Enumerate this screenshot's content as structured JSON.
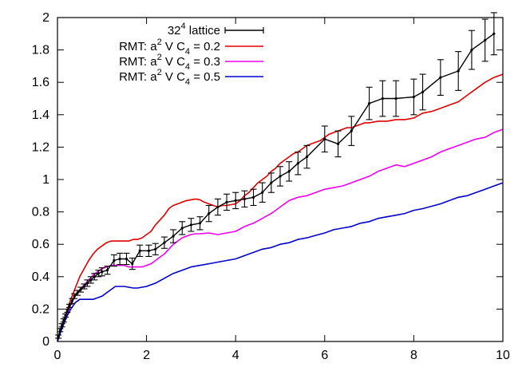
{
  "chart_data": {
    "type": "line",
    "title": "",
    "xlabel": "",
    "ylabel": "",
    "xlim": [
      0,
      10
    ],
    "ylim": [
      0,
      2
    ],
    "x_ticks": [
      "0",
      "2",
      "4",
      "6",
      "8",
      "10"
    ],
    "y_ticks": [
      "0",
      "0.2",
      "0.4",
      "0.6",
      "0.8",
      "1",
      "1.2",
      "1.4",
      "1.6",
      "1.8",
      "2"
    ],
    "grid": false,
    "legend_position": "top-left",
    "series": [
      {
        "name": "32⁴ lattice",
        "legend_base": "32",
        "legend_sup": "4",
        "legend_rest": " lattice",
        "color": "#000000",
        "style": "errorbars-with-line",
        "x": [
          0.02,
          0.06,
          0.1,
          0.14,
          0.18,
          0.22,
          0.27,
          0.33,
          0.38,
          0.45,
          0.52,
          0.6,
          0.67,
          0.75,
          0.83,
          0.92,
          1.0,
          1.12,
          1.27,
          1.4,
          1.55,
          1.68,
          1.85,
          2.05,
          2.2,
          2.4,
          2.6,
          2.8,
          3.0,
          3.2,
          3.4,
          3.6,
          3.8,
          4.0,
          4.2,
          4.4,
          4.6,
          4.8,
          5.0,
          5.2,
          5.4,
          5.6,
          6.0,
          6.3,
          6.6,
          7.0,
          7.3,
          7.6,
          8.0,
          8.2,
          8.6,
          9.0,
          9.3,
          9.6,
          9.8
        ],
        "y": [
          0.03,
          0.07,
          0.1,
          0.13,
          0.16,
          0.19,
          0.22,
          0.25,
          0.28,
          0.3,
          0.32,
          0.34,
          0.36,
          0.38,
          0.4,
          0.42,
          0.43,
          0.44,
          0.5,
          0.51,
          0.51,
          0.48,
          0.56,
          0.56,
          0.57,
          0.61,
          0.65,
          0.7,
          0.72,
          0.73,
          0.79,
          0.83,
          0.86,
          0.87,
          0.88,
          0.89,
          0.92,
          0.98,
          1.02,
          1.05,
          1.1,
          1.14,
          1.25,
          1.22,
          1.3,
          1.47,
          1.5,
          1.5,
          1.51,
          1.54,
          1.63,
          1.67,
          1.8,
          1.86,
          1.9
        ],
        "err": [
          0.01,
          0.01,
          0.01,
          0.01,
          0.01,
          0.01,
          0.01,
          0.015,
          0.015,
          0.015,
          0.015,
          0.015,
          0.02,
          0.02,
          0.02,
          0.02,
          0.025,
          0.025,
          0.035,
          0.035,
          0.035,
          0.035,
          0.035,
          0.035,
          0.035,
          0.035,
          0.04,
          0.04,
          0.04,
          0.04,
          0.05,
          0.05,
          0.05,
          0.05,
          0.05,
          0.05,
          0.06,
          0.06,
          0.06,
          0.06,
          0.07,
          0.07,
          0.08,
          0.08,
          0.09,
          0.1,
          0.11,
          0.11,
          0.11,
          0.11,
          0.11,
          0.12,
          0.12,
          0.13,
          0.13
        ]
      },
      {
        "name": "RMT: a² V C₄ = 0.2",
        "legend_prefix": "RMT: a",
        "legend_sup": "2",
        "legend_mid": " V C",
        "legend_sub": "4",
        "legend_rest": " = 0.2",
        "color": "#e00000",
        "style": "line",
        "x": [
          0,
          0.1,
          0.2,
          0.3,
          0.4,
          0.5,
          0.6,
          0.7,
          0.8,
          0.9,
          1.0,
          1.1,
          1.2,
          1.3,
          1.4,
          1.5,
          1.6,
          1.7,
          1.8,
          1.9,
          2.0,
          2.1,
          2.2,
          2.3,
          2.4,
          2.5,
          2.6,
          2.7,
          2.8,
          2.9,
          3.0,
          3.1,
          3.2,
          3.3,
          3.4,
          3.5,
          3.6,
          3.7,
          3.8,
          3.9,
          4.0,
          4.1,
          4.2,
          4.3,
          4.4,
          4.5,
          4.6,
          4.7,
          4.8,
          4.9,
          5.0,
          5.1,
          5.2,
          5.3,
          5.4,
          5.5,
          5.6,
          5.7,
          5.8,
          5.9,
          6.0,
          6.1,
          6.2,
          6.3,
          6.4,
          6.5,
          6.6,
          6.7,
          6.8,
          6.9,
          7.0,
          7.2,
          7.4,
          7.6,
          7.8,
          8.0,
          8.2,
          8.4,
          8.6,
          8.8,
          9.0,
          9.2,
          9.4,
          9.6,
          9.8,
          10.0
        ],
        "y": [
          0,
          0.1,
          0.18,
          0.26,
          0.33,
          0.4,
          0.45,
          0.5,
          0.54,
          0.57,
          0.59,
          0.61,
          0.62,
          0.62,
          0.62,
          0.62,
          0.62,
          0.63,
          0.63,
          0.64,
          0.66,
          0.68,
          0.72,
          0.75,
          0.78,
          0.82,
          0.84,
          0.85,
          0.86,
          0.87,
          0.875,
          0.88,
          0.875,
          0.86,
          0.85,
          0.84,
          0.83,
          0.84,
          0.84,
          0.845,
          0.85,
          0.87,
          0.9,
          0.92,
          0.95,
          0.98,
          1.0,
          1.02,
          1.05,
          1.07,
          1.1,
          1.12,
          1.14,
          1.16,
          1.17,
          1.19,
          1.21,
          1.22,
          1.23,
          1.24,
          1.26,
          1.28,
          1.29,
          1.3,
          1.31,
          1.32,
          1.32,
          1.33,
          1.34,
          1.35,
          1.35,
          1.36,
          1.36,
          1.37,
          1.37,
          1.38,
          1.41,
          1.42,
          1.44,
          1.46,
          1.48,
          1.52,
          1.56,
          1.6,
          1.63,
          1.65
        ]
      },
      {
        "name": "RMT: a² V C₄ = 0.3",
        "legend_prefix": "RMT: a",
        "legend_sup": "2",
        "legend_mid": " V C",
        "legend_sub": "4",
        "legend_rest": " = 0.3",
        "color": "#ee00ee",
        "style": "line",
        "x": [
          0,
          0.1,
          0.2,
          0.3,
          0.4,
          0.5,
          0.6,
          0.7,
          0.8,
          0.9,
          1.0,
          1.1,
          1.2,
          1.3,
          1.4,
          1.5,
          1.6,
          1.7,
          1.8,
          1.9,
          2.0,
          2.1,
          2.2,
          2.3,
          2.4,
          2.5,
          2.6,
          2.7,
          2.8,
          2.9,
          3.0,
          3.1,
          3.2,
          3.4,
          3.6,
          3.8,
          4.0,
          4.2,
          4.4,
          4.6,
          4.8,
          5.0,
          5.2,
          5.4,
          5.6,
          5.8,
          6.0,
          6.2,
          6.4,
          6.6,
          6.8,
          7.0,
          7.2,
          7.4,
          7.6,
          7.8,
          8.0,
          8.2,
          8.4,
          8.6,
          8.8,
          9.0,
          9.2,
          9.4,
          9.6,
          9.8,
          10.0
        ],
        "y": [
          0,
          0.09,
          0.16,
          0.23,
          0.28,
          0.32,
          0.35,
          0.38,
          0.41,
          0.43,
          0.45,
          0.46,
          0.47,
          0.47,
          0.47,
          0.47,
          0.46,
          0.46,
          0.46,
          0.46,
          0.47,
          0.48,
          0.5,
          0.52,
          0.54,
          0.57,
          0.6,
          0.62,
          0.64,
          0.65,
          0.66,
          0.665,
          0.665,
          0.67,
          0.66,
          0.67,
          0.68,
          0.71,
          0.73,
          0.76,
          0.79,
          0.83,
          0.87,
          0.89,
          0.9,
          0.92,
          0.94,
          0.95,
          0.96,
          0.98,
          1.0,
          1.02,
          1.05,
          1.07,
          1.09,
          1.08,
          1.1,
          1.12,
          1.14,
          1.17,
          1.19,
          1.21,
          1.23,
          1.25,
          1.26,
          1.29,
          1.31
        ]
      },
      {
        "name": "RMT: a² V C₄ = 0.5",
        "legend_prefix": "RMT: a",
        "legend_sup": "2",
        "legend_mid": " V C",
        "legend_sub": "4",
        "legend_rest": " = 0.5",
        "color": "#0000cc",
        "style": "line",
        "x": [
          0,
          0.1,
          0.2,
          0.3,
          0.4,
          0.5,
          0.6,
          0.7,
          0.8,
          0.9,
          1.0,
          1.1,
          1.2,
          1.3,
          1.4,
          1.5,
          1.6,
          1.7,
          1.8,
          1.9,
          2.0,
          2.2,
          2.4,
          2.6,
          2.8,
          3.0,
          3.2,
          3.4,
          3.6,
          3.8,
          4.0,
          4.2,
          4.4,
          4.6,
          4.8,
          5.0,
          5.2,
          5.4,
          5.6,
          5.8,
          6.0,
          6.2,
          6.4,
          6.6,
          6.8,
          7.0,
          7.2,
          7.4,
          7.6,
          7.8,
          8.0,
          8.2,
          8.4,
          8.6,
          8.8,
          9.0,
          9.2,
          9.4,
          9.6,
          9.8,
          10.0
        ],
        "y": [
          0,
          0.08,
          0.15,
          0.2,
          0.24,
          0.26,
          0.26,
          0.26,
          0.26,
          0.27,
          0.28,
          0.3,
          0.32,
          0.34,
          0.34,
          0.34,
          0.335,
          0.33,
          0.33,
          0.335,
          0.34,
          0.36,
          0.39,
          0.42,
          0.44,
          0.46,
          0.47,
          0.48,
          0.49,
          0.5,
          0.51,
          0.53,
          0.55,
          0.57,
          0.58,
          0.6,
          0.61,
          0.63,
          0.64,
          0.655,
          0.67,
          0.69,
          0.7,
          0.71,
          0.73,
          0.74,
          0.76,
          0.77,
          0.78,
          0.79,
          0.81,
          0.82,
          0.835,
          0.85,
          0.87,
          0.89,
          0.9,
          0.92,
          0.94,
          0.96,
          0.98
        ]
      }
    ]
  }
}
